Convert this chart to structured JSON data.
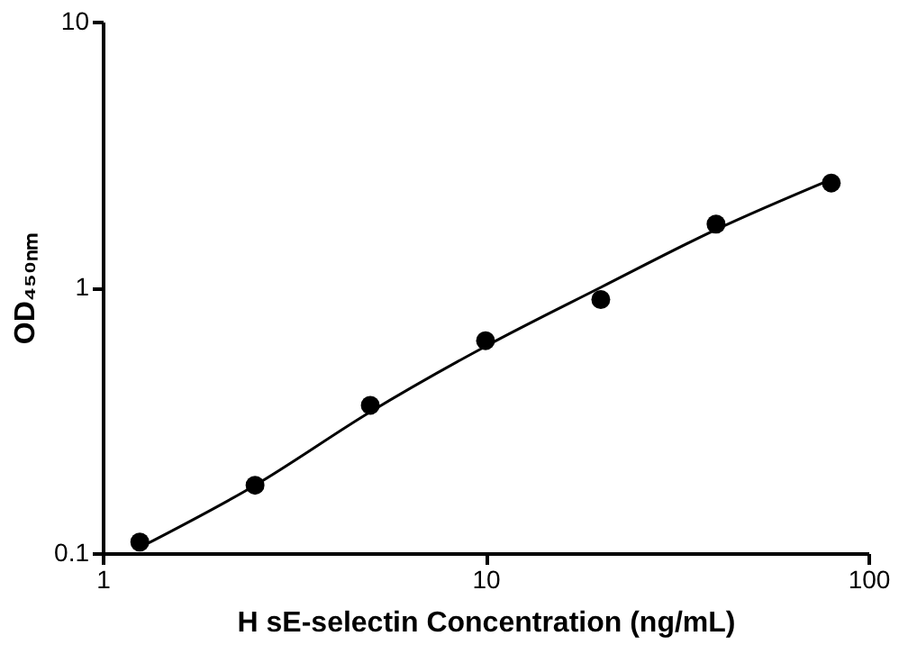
{
  "chart_data": {
    "type": "scatter",
    "xlabel": "H sE-selectin Concentration (ng/mL)",
    "ylabel": "OD₄₅₀ₙₘ",
    "log": "xy",
    "xlim": [
      1,
      100
    ],
    "ylim": [
      0.1,
      10
    ],
    "xticks": [
      1,
      10,
      100
    ],
    "yticks": [
      0.1,
      1,
      10
    ],
    "grid": false,
    "series": [
      {
        "marker": "circle",
        "color": "#000000",
        "x": [
          1.25,
          2.5,
          5,
          10,
          20,
          40,
          80
        ],
        "values": [
          0.11,
          0.18,
          0.36,
          0.63,
          0.9,
          1.73,
          2.47
        ]
      },
      {
        "type": "line",
        "marker": "none",
        "line_style": "solid",
        "color": "#000000",
        "x": [
          1.25,
          2.5,
          5,
          10,
          20,
          40,
          80
        ],
        "values": [
          0.105,
          0.18,
          0.34,
          0.6,
          1.0,
          1.65,
          2.55
        ]
      }
    ]
  }
}
